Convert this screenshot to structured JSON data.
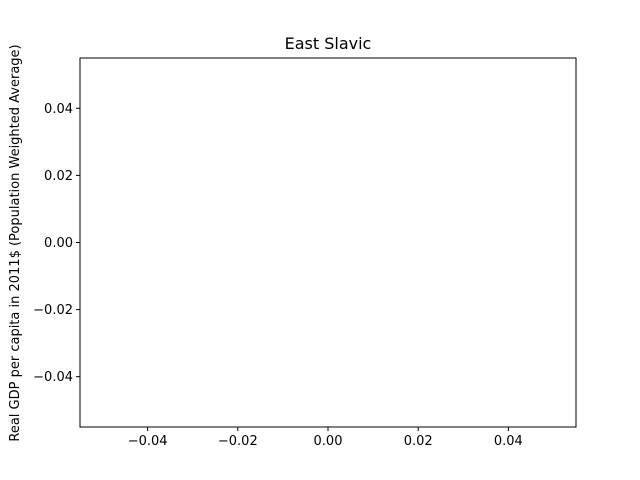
{
  "chart_data": {
    "type": "line",
    "title": "East Slavic",
    "xlabel": "",
    "ylabel": "Real GDP per capita in 2011$ (Population Weighted Average)",
    "xlim": [
      -0.055,
      0.055
    ],
    "ylim": [
      -0.055,
      0.055
    ],
    "x_ticks": [
      -0.04,
      -0.02,
      0.0,
      0.02,
      0.04
    ],
    "x_tick_labels": [
      "−0.04",
      "−0.02",
      "0.00",
      "0.02",
      "0.04"
    ],
    "y_ticks": [
      -0.04,
      -0.02,
      0.0,
      0.02,
      0.04
    ],
    "y_tick_labels": [
      "−0.04",
      "−0.02",
      "0.00",
      "0.02",
      "0.04"
    ],
    "grid": false,
    "legend": "none",
    "series": []
  }
}
